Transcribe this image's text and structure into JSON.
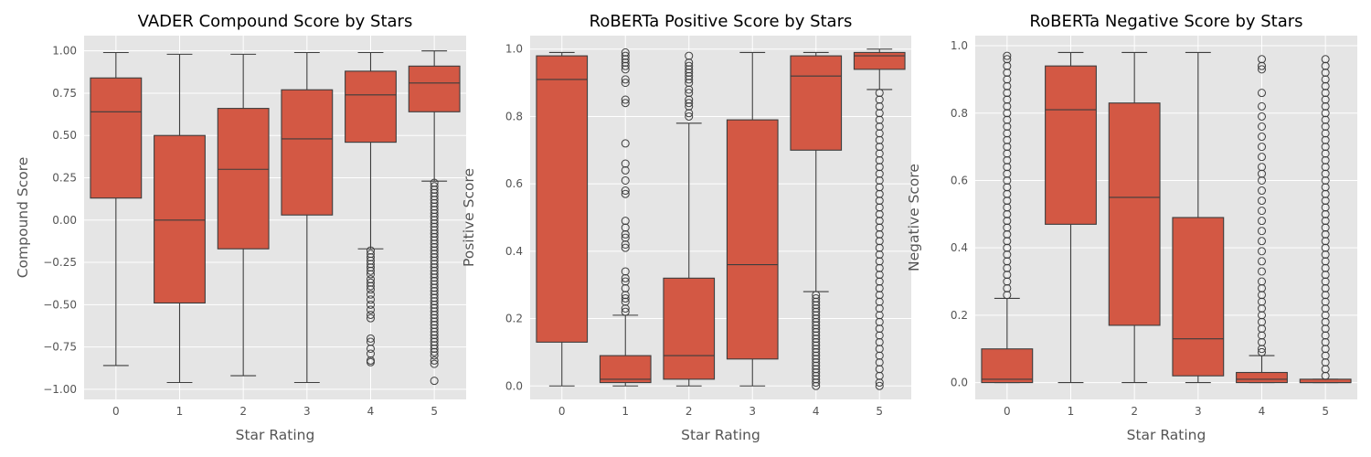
{
  "chart_data": [
    {
      "type": "box",
      "title": "VADER Compound Score by Stars",
      "xlabel": "Star Rating",
      "ylabel": "Compound Score",
      "categories": [
        "0",
        "1",
        "2",
        "3",
        "4",
        "5"
      ],
      "ylim": [
        -1.06,
        1.09
      ],
      "yticks": [
        -1.0,
        -0.75,
        -0.5,
        -0.25,
        0.0,
        0.25,
        0.5,
        0.75,
        1.0
      ],
      "ytick_labels": [
        "−1.00",
        "−0.75",
        "−0.50",
        "−0.25",
        "0.00",
        "0.25",
        "0.50",
        "0.75",
        "1.00"
      ],
      "grid": true,
      "boxes": [
        {
          "whisker_low": -0.86,
          "q1": 0.13,
          "median": 0.64,
          "q3": 0.84,
          "whisker_high": 0.99,
          "outliers": []
        },
        {
          "whisker_low": -0.96,
          "q1": -0.49,
          "median": 0.0,
          "q3": 0.5,
          "whisker_high": 0.98,
          "outliers": []
        },
        {
          "whisker_low": -0.92,
          "q1": -0.17,
          "median": 0.3,
          "q3": 0.66,
          "whisker_high": 0.98,
          "outliers": []
        },
        {
          "whisker_low": -0.96,
          "q1": 0.03,
          "median": 0.48,
          "q3": 0.77,
          "whisker_high": 0.99,
          "outliers": []
        },
        {
          "whisker_low": -0.17,
          "q1": 0.46,
          "median": 0.74,
          "q3": 0.88,
          "whisker_high": 0.99,
          "outliers": [
            -0.18,
            -0.2,
            -0.22,
            -0.24,
            -0.26,
            -0.28,
            -0.3,
            -0.32,
            -0.35,
            -0.37,
            -0.39,
            -0.41,
            -0.44,
            -0.47,
            -0.5,
            -0.53,
            -0.56,
            -0.58,
            -0.7,
            -0.72,
            -0.76,
            -0.79,
            -0.83,
            -0.84
          ]
        },
        {
          "whisker_low": 0.23,
          "q1": 0.64,
          "median": 0.81,
          "q3": 0.91,
          "whisker_high": 1.0,
          "outliers": [
            0.22,
            0.2,
            0.18,
            0.16,
            0.14,
            0.12,
            0.1,
            0.08,
            0.06,
            0.04,
            0.02,
            0.0,
            -0.02,
            -0.04,
            -0.06,
            -0.08,
            -0.1,
            -0.12,
            -0.14,
            -0.16,
            -0.18,
            -0.2,
            -0.22,
            -0.24,
            -0.26,
            -0.28,
            -0.3,
            -0.32,
            -0.34,
            -0.36,
            -0.38,
            -0.4,
            -0.42,
            -0.44,
            -0.46,
            -0.48,
            -0.5,
            -0.52,
            -0.54,
            -0.56,
            -0.58,
            -0.6,
            -0.62,
            -0.64,
            -0.66,
            -0.68,
            -0.7,
            -0.72,
            -0.74,
            -0.76,
            -0.78,
            -0.8,
            -0.83,
            -0.85,
            -0.95
          ]
        }
      ]
    },
    {
      "type": "box",
      "title": "RoBERTa Positive Score by Stars",
      "xlabel": "Star Rating",
      "ylabel": "Positive Score",
      "categories": [
        "0",
        "1",
        "2",
        "3",
        "4",
        "5"
      ],
      "ylim": [
        -0.04,
        1.04
      ],
      "yticks": [
        0.0,
        0.2,
        0.4,
        0.6,
        0.8,
        1.0
      ],
      "ytick_labels": [
        "0.0",
        "0.2",
        "0.4",
        "0.6",
        "0.8",
        "1.0"
      ],
      "grid": true,
      "boxes": [
        {
          "whisker_low": 0.0,
          "q1": 0.13,
          "median": 0.91,
          "q3": 0.98,
          "whisker_high": 0.99,
          "outliers": []
        },
        {
          "whisker_low": 0.0,
          "q1": 0.01,
          "median": 0.02,
          "q3": 0.09,
          "whisker_high": 0.21,
          "outliers": [
            0.22,
            0.23,
            0.25,
            0.26,
            0.27,
            0.29,
            0.31,
            0.32,
            0.34,
            0.41,
            0.42,
            0.44,
            0.45,
            0.47,
            0.49,
            0.57,
            0.58,
            0.61,
            0.64,
            0.66,
            0.72,
            0.84,
            0.85,
            0.9,
            0.91,
            0.94,
            0.95,
            0.96,
            0.97,
            0.98,
            0.99
          ]
        },
        {
          "whisker_low": 0.0,
          "q1": 0.02,
          "median": 0.09,
          "q3": 0.32,
          "whisker_high": 0.78,
          "outliers": [
            0.8,
            0.81,
            0.83,
            0.84,
            0.85,
            0.87,
            0.88,
            0.9,
            0.91,
            0.92,
            0.93,
            0.94,
            0.95,
            0.96,
            0.98
          ]
        },
        {
          "whisker_low": 0.0,
          "q1": 0.08,
          "median": 0.36,
          "q3": 0.79,
          "whisker_high": 0.99,
          "outliers": []
        },
        {
          "whisker_low": 0.28,
          "q1": 0.7,
          "median": 0.92,
          "q3": 0.98,
          "whisker_high": 0.99,
          "outliers": [
            0.27,
            0.26,
            0.25,
            0.24,
            0.23,
            0.22,
            0.21,
            0.2,
            0.19,
            0.18,
            0.17,
            0.16,
            0.15,
            0.14,
            0.13,
            0.12,
            0.11,
            0.1,
            0.09,
            0.08,
            0.07,
            0.06,
            0.05,
            0.04,
            0.03,
            0.02,
            0.01,
            0.0
          ]
        },
        {
          "whisker_low": 0.88,
          "q1": 0.94,
          "median": 0.98,
          "q3": 0.99,
          "whisker_high": 1.0,
          "outliers": [
            0.87,
            0.85,
            0.83,
            0.81,
            0.79,
            0.77,
            0.75,
            0.73,
            0.71,
            0.69,
            0.67,
            0.65,
            0.63,
            0.61,
            0.59,
            0.57,
            0.55,
            0.53,
            0.51,
            0.49,
            0.47,
            0.45,
            0.43,
            0.41,
            0.39,
            0.37,
            0.35,
            0.33,
            0.31,
            0.29,
            0.27,
            0.25,
            0.23,
            0.21,
            0.19,
            0.17,
            0.15,
            0.13,
            0.11,
            0.09,
            0.07,
            0.05,
            0.03,
            0.01,
            0.0
          ]
        }
      ]
    },
    {
      "type": "box",
      "title": "RoBERTa Negative Score by Stars",
      "xlabel": "Star Rating",
      "ylabel": "Negative Score",
      "categories": [
        "0",
        "1",
        "2",
        "3",
        "4",
        "5"
      ],
      "ylim": [
        -0.05,
        1.03
      ],
      "yticks": [
        0.0,
        0.2,
        0.4,
        0.6,
        0.8,
        1.0
      ],
      "ytick_labels": [
        "0.0",
        "0.2",
        "0.4",
        "0.6",
        "0.8",
        "1.0"
      ],
      "grid": true,
      "boxes": [
        {
          "whisker_low": 0.0,
          "q1": 0.0,
          "median": 0.01,
          "q3": 0.1,
          "whisker_high": 0.25,
          "outliers": [
            0.26,
            0.28,
            0.3,
            0.32,
            0.34,
            0.36,
            0.38,
            0.4,
            0.42,
            0.44,
            0.46,
            0.48,
            0.5,
            0.52,
            0.54,
            0.56,
            0.58,
            0.6,
            0.62,
            0.64,
            0.66,
            0.68,
            0.7,
            0.72,
            0.74,
            0.76,
            0.78,
            0.8,
            0.82,
            0.84,
            0.86,
            0.88,
            0.9,
            0.92,
            0.94,
            0.96,
            0.97
          ]
        },
        {
          "whisker_low": 0.0,
          "q1": 0.47,
          "median": 0.81,
          "q3": 0.94,
          "whisker_high": 0.98,
          "outliers": []
        },
        {
          "whisker_low": 0.0,
          "q1": 0.17,
          "median": 0.55,
          "q3": 0.83,
          "whisker_high": 0.98,
          "outliers": []
        },
        {
          "whisker_low": 0.0,
          "q1": 0.02,
          "median": 0.13,
          "q3": 0.49,
          "whisker_high": 0.98,
          "outliers": []
        },
        {
          "whisker_low": 0.0,
          "q1": 0.0,
          "median": 0.01,
          "q3": 0.03,
          "whisker_high": 0.08,
          "outliers": [
            0.09,
            0.1,
            0.12,
            0.14,
            0.16,
            0.18,
            0.2,
            0.22,
            0.24,
            0.26,
            0.28,
            0.3,
            0.33,
            0.36,
            0.39,
            0.42,
            0.45,
            0.48,
            0.51,
            0.54,
            0.57,
            0.6,
            0.62,
            0.64,
            0.67,
            0.7,
            0.73,
            0.76,
            0.79,
            0.82,
            0.86,
            0.93,
            0.94,
            0.96
          ]
        },
        {
          "whisker_low": 0.0,
          "q1": 0.0,
          "median": 0.0,
          "q3": 0.01,
          "whisker_high": 0.01,
          "outliers": [
            0.02,
            0.04,
            0.06,
            0.08,
            0.1,
            0.12,
            0.14,
            0.16,
            0.18,
            0.2,
            0.22,
            0.24,
            0.26,
            0.28,
            0.3,
            0.32,
            0.34,
            0.36,
            0.38,
            0.4,
            0.42,
            0.44,
            0.46,
            0.48,
            0.5,
            0.52,
            0.54,
            0.56,
            0.58,
            0.6,
            0.62,
            0.64,
            0.66,
            0.68,
            0.7,
            0.72,
            0.74,
            0.76,
            0.78,
            0.8,
            0.82,
            0.84,
            0.86,
            0.88,
            0.9,
            0.92,
            0.94,
            0.96
          ]
        }
      ]
    }
  ],
  "colors": {
    "box_fill": "#d35844",
    "line": "#3d3d3d",
    "plot_bg": "#e5e5e5",
    "grid": "#ffffff"
  }
}
